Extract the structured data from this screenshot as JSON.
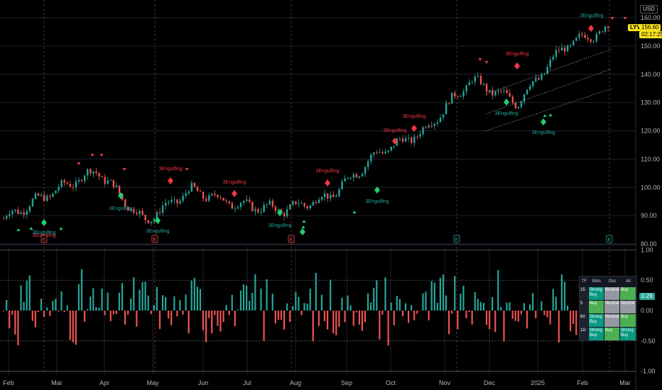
{
  "header": {
    "currency": "USD",
    "symbol": "LYV",
    "last_price": "156.60",
    "countdown": "02:17:25"
  },
  "chart_data": [
    {
      "type": "candlestick",
      "price_axis": {
        "ticks": [
          "80.00",
          "90.00",
          "100.00",
          "110.00",
          "120.00",
          "130.00",
          "140.00",
          "150.00",
          "160.00"
        ],
        "ylim": [
          80,
          160
        ]
      },
      "time_axis": {
        "ticks": [
          "Feb",
          "Mar",
          "Apr",
          "May",
          "Jun",
          "Jul",
          "Aug",
          "Sep",
          "Oct",
          "Nov",
          "Dec",
          "2025",
          "Feb",
          "Mar"
        ]
      },
      "annotations": [
        {
          "text": "3Engulfing",
          "color": "#f23645"
        },
        {
          "text": "3Engulfing",
          "color": "#f23645"
        },
        {
          "text": "3Engulfing",
          "color": "#f23645"
        },
        {
          "text": "3Engulfing",
          "color": "#f23645"
        },
        {
          "text": "3Engulfing",
          "color": "#f23645"
        },
        {
          "text": "3Engulfing",
          "color": "#f23645"
        },
        {
          "text": "3Engulfing",
          "color": "#f23645"
        },
        {
          "text": "3Engulfing",
          "color": "#26a69a"
        },
        {
          "text": "3Engulfing",
          "color": "#26a69a"
        },
        {
          "text": "3Engulfing",
          "color": "#26a69a"
        },
        {
          "text": "3Engulfing",
          "color": "#26a69a"
        },
        {
          "text": "3Engulfing",
          "color": "#26a69a"
        },
        {
          "text": "3Engulfing",
          "color": "#26a69a"
        },
        {
          "text": "3Engulfing",
          "color": "#26a69a"
        },
        {
          "text": "3Engulfing",
          "color": "#26a69a"
        }
      ],
      "earnings_markers": [
        "E",
        "E",
        "E",
        "E",
        "E"
      ],
      "key_points": [
        {
          "date": "Feb",
          "price": 89
        },
        {
          "date": "Mar",
          "price": 98
        },
        {
          "date": "Apr",
          "price": 106
        },
        {
          "date": "May",
          "price": 88
        },
        {
          "date": "Jun",
          "price": 99
        },
        {
          "date": "Jul",
          "price": 94
        },
        {
          "date": "Aug",
          "price": 92
        },
        {
          "date": "Sep",
          "price": 97
        },
        {
          "date": "Oct",
          "price": 112
        },
        {
          "date": "Nov",
          "price": 120
        },
        {
          "date": "Dec",
          "price": 138
        },
        {
          "date": "2025",
          "price": 130
        },
        {
          "date": "Feb",
          "price": 150
        },
        {
          "date": "Mar",
          "price": 156.6
        }
      ]
    },
    {
      "type": "bar",
      "name": "oscillator",
      "ylim": [
        -1.05,
        1.05
      ],
      "y_ticks": [
        "1.00",
        "0.50",
        "0.00",
        "-0.50",
        "-1.00"
      ],
      "current_value": "0.29"
    }
  ],
  "ratings_table": {
    "headers": [
      "TF",
      "MAs",
      "Osc",
      "All"
    ],
    "rows": [
      [
        "15",
        "Strong Buy",
        "Neutral",
        "Buy"
      ],
      [
        "5",
        "Buy",
        "Neutral",
        "Neutral"
      ],
      [
        "60",
        "Strong Buy",
        "Neutral",
        "Buy"
      ],
      [
        "1D",
        "Strong Buy",
        "Buy",
        "Strong Buy"
      ]
    ]
  },
  "colors": {
    "up": "#26a69a",
    "down": "#ef5350",
    "red_marker": "#f23645",
    "green_marker": "#1fcf6e",
    "price_tag": "#f7e11e"
  }
}
